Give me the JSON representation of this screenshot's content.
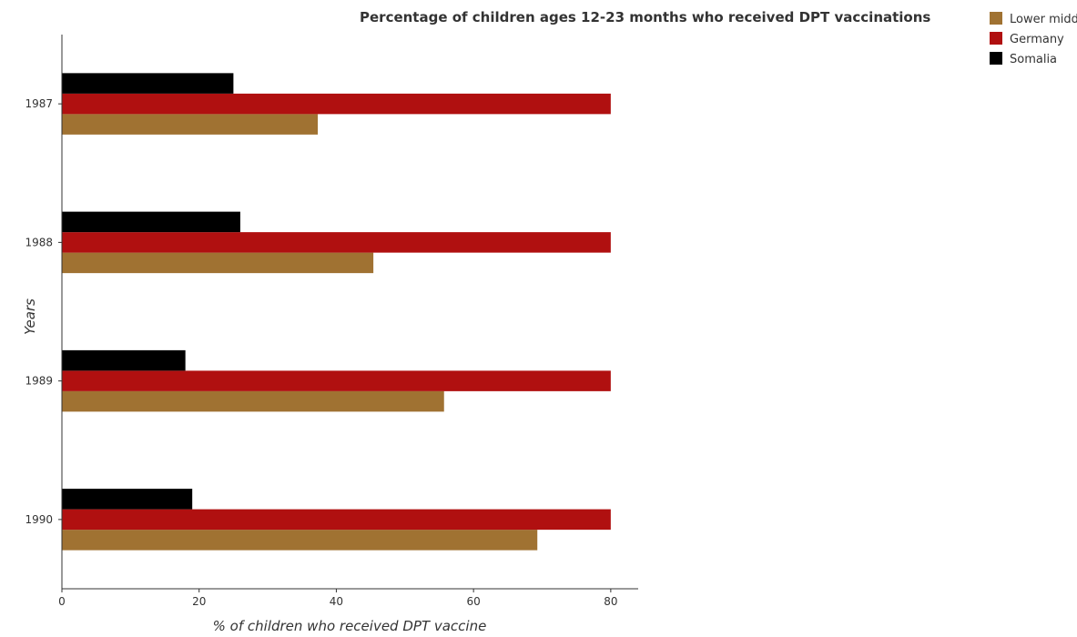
{
  "chart_data": {
    "type": "bar",
    "orientation": "horizontal",
    "title": "Percentage of children ages 12-23 months who received DPT vaccinations",
    "xlabel": "% of children who received DPT vaccine",
    "ylabel": "Years",
    "categories": [
      "1987",
      "1988",
      "1989",
      "1990"
    ],
    "series": [
      {
        "name": "Lower middle income",
        "color": "#a07232",
        "values": [
          37.3,
          45.4,
          55.7,
          69.3
        ]
      },
      {
        "name": "Germany",
        "color": "#b01010",
        "values": [
          80,
          80,
          80,
          80
        ]
      },
      {
        "name": "Somalia",
        "color": "#000000",
        "values": [
          25,
          26,
          18,
          19
        ]
      }
    ],
    "xlim": [
      0,
      84
    ],
    "xticks": [
      "0",
      "20",
      "40",
      "60",
      "80"
    ],
    "grid": false,
    "legend_position": "top-right"
  }
}
